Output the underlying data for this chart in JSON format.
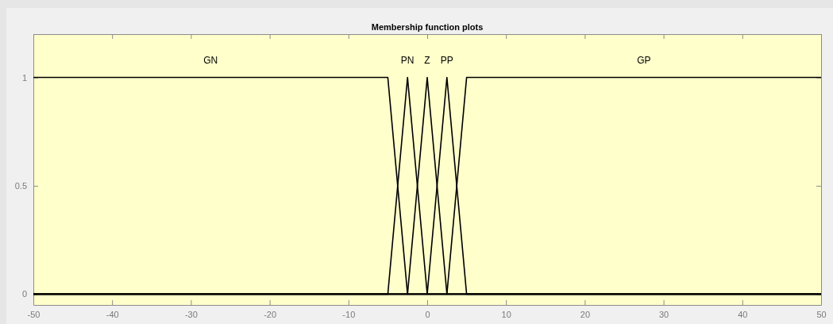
{
  "chart_data": {
    "type": "line",
    "title": "Membership function plots",
    "xlim": [
      -50,
      50
    ],
    "xticks": [
      -50,
      -40,
      -30,
      -20,
      -10,
      0,
      10,
      20,
      30,
      40,
      50
    ],
    "ylim": [
      -0.05,
      1.2
    ],
    "yticks": [
      0,
      0.5,
      1
    ],
    "grid": false,
    "marker": "none",
    "line_style": "solid",
    "series": [
      {
        "name": "GN",
        "color": "#000000",
        "x": [
          -50,
          -5,
          -2.5,
          50
        ],
        "values": [
          1,
          1,
          0,
          0
        ]
      },
      {
        "name": "PN",
        "color": "#000000",
        "x": [
          -50,
          -5,
          -2.5,
          0,
          50
        ],
        "values": [
          0,
          0,
          1,
          0,
          0
        ]
      },
      {
        "name": "Z",
        "color": "#000000",
        "x": [
          -50,
          -2.5,
          0,
          2.5,
          50
        ],
        "values": [
          0,
          0,
          1,
          0,
          0
        ]
      },
      {
        "name": "PP",
        "color": "#000000",
        "x": [
          -50,
          0,
          2.5,
          5,
          50
        ],
        "values": [
          0,
          0,
          1,
          0,
          0
        ]
      },
      {
        "name": "GP",
        "color": "#000000",
        "x": [
          -50,
          2.5,
          5,
          50
        ],
        "values": [
          0,
          0,
          1,
          1
        ]
      }
    ]
  }
}
